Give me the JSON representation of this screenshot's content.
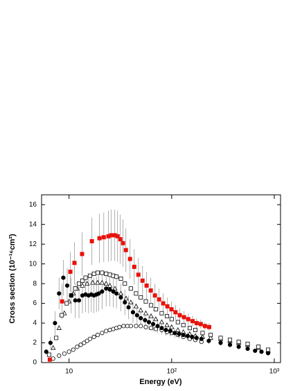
{
  "chart_data": {
    "type": "scatter",
    "xlabel": "Energy (eV)",
    "ylabel": "Cross section (10⁻¹⁶cm²)",
    "xscale": "log",
    "xlim": [
      5.4,
      1150
    ],
    "ylim": [
      0,
      17
    ],
    "xticks": [
      10,
      {
        "value": 100,
        "label": "10²"
      },
      {
        "value": 1000,
        "label": "10³"
      }
    ],
    "yticks": [
      0,
      2,
      4,
      6,
      8,
      10,
      12,
      14,
      16
    ],
    "errorbar_color": "#9a9a9a",
    "series": [
      {
        "color": "#e8120c",
        "marker": "square",
        "filled": true,
        "x": [
          6.5,
          8.56,
          10.3,
          11.3,
          13.4,
          16.7,
          19.8,
          21.8,
          24.2,
          25.8,
          27.9,
          29.7,
          31.6,
          33.6,
          35.8,
          39.3,
          43.2,
          47.4,
          52,
          57,
          62.6,
          68.7,
          75.4,
          82.7,
          90.8,
          99.6,
          109,
          120,
          132,
          145,
          160,
          175,
          192,
          211,
          232
        ],
        "values": [
          0.3,
          6.2,
          9.2,
          10.1,
          11.0,
          12.3,
          12.6,
          12.7,
          12.8,
          12.9,
          12.9,
          12.8,
          12.5,
          12.1,
          11.4,
          10.5,
          9.7,
          8.9,
          8.3,
          7.8,
          7.3,
          6.8,
          6.4,
          6.0,
          5.7,
          5.4,
          5.1,
          4.8,
          4.6,
          4.4,
          4.2,
          4.0,
          3.9,
          3.7,
          3.6
        ],
        "errors": [
          0.1,
          1.8,
          2.0,
          2.1,
          2.2,
          2.4,
          2.5,
          2.5,
          2.6,
          2.6,
          2.6,
          2.6,
          2.5,
          2.4,
          2.2,
          2.0,
          1.8,
          1.7,
          1.5,
          1.4,
          1.3,
          1.2,
          1.1,
          1.0,
          0.9,
          0.8,
          0.75,
          0.7,
          0.65,
          0.6,
          0.55,
          0.5,
          0.45,
          0.4,
          0.4
        ]
      },
      {
        "color": "#000000",
        "marker": "circle",
        "filled": true,
        "x": [
          6.0,
          6.6,
          7.3,
          8.0,
          8.8,
          9.6,
          10.5,
          11.5,
          12.5,
          13.5,
          14.5,
          15.5,
          16.5,
          17.5,
          18.5,
          19.5,
          21,
          23,
          25,
          27,
          29,
          32,
          35,
          38,
          42,
          46,
          50,
          55,
          60,
          66,
          73,
          80,
          88,
          97,
          107,
          118,
          130,
          143,
          158,
          175,
          195,
          230,
          300,
          370,
          450,
          550,
          650,
          750,
          870
        ],
        "values": [
          1.1,
          2.0,
          4.0,
          7.0,
          8.6,
          7.8,
          6.8,
          6.3,
          6.3,
          6.8,
          6.9,
          6.8,
          6.9,
          6.8,
          6.9,
          7.0,
          7.2,
          7.5,
          7.4,
          7.2,
          7.0,
          6.6,
          6.1,
          5.6,
          5.1,
          4.8,
          4.5,
          4.3,
          4.1,
          3.9,
          3.7,
          3.5,
          3.3,
          3.2,
          3.0,
          2.9,
          2.8,
          2.7,
          2.6,
          2.5,
          2.4,
          2.2,
          2.0,
          1.8,
          1.6,
          1.4,
          1.2,
          1.1,
          0.95
        ],
        "errors": [
          0.3,
          0.6,
          1.2,
          1.6,
          1.8,
          1.8,
          1.8,
          1.8,
          1.8,
          1.8,
          1.8,
          1.8,
          1.8,
          1.8,
          1.8,
          1.8,
          1.8,
          1.8,
          1.7,
          1.6,
          1.5,
          1.4,
          1.3,
          1.2,
          1.1,
          1.0,
          0.9,
          0.85,
          0.8,
          0.75,
          0.7,
          0.65,
          0.6,
          0.55,
          0.5,
          0.45,
          0.4,
          0.4,
          0.35,
          0.35,
          0.3,
          0.3,
          0.3,
          0.25,
          0.25,
          0.2,
          0.2,
          0.2,
          0.2
        ]
      },
      {
        "color": "#000000",
        "marker": "square",
        "filled": false,
        "x": [
          6.4,
          7.5,
          8.5,
          9.5,
          10.5,
          11.5,
          12.5,
          13.5,
          14.5,
          16,
          17.5,
          19,
          21,
          23,
          25,
          27,
          29,
          32,
          35,
          40,
          45,
          50,
          56,
          63,
          70,
          80,
          90,
          100,
          115,
          130,
          150,
          170,
          200,
          240,
          300,
          370,
          450,
          550,
          700,
          870
        ],
        "values": [
          0.8,
          2.5,
          4.8,
          6.0,
          6.8,
          7.5,
          8.0,
          8.3,
          8.6,
          8.8,
          9.0,
          9.1,
          9.1,
          9.0,
          8.9,
          8.8,
          8.7,
          8.5,
          8.0,
          7.5,
          7.0,
          6.6,
          6.2,
          5.8,
          5.4,
          5.0,
          4.7,
          4.4,
          4.1,
          3.8,
          3.5,
          3.3,
          3.0,
          2.8,
          2.5,
          2.3,
          2.1,
          1.9,
          1.6,
          1.3
        ]
      },
      {
        "color": "#000000",
        "marker": "triangle",
        "filled": false,
        "x": [
          7,
          8,
          9,
          10,
          11,
          12,
          13.5,
          15,
          17,
          19,
          21,
          23,
          25,
          28,
          32,
          36,
          40,
          45,
          50,
          56,
          63,
          70,
          80,
          90,
          100,
          115,
          130,
          150,
          170,
          200,
          240,
          300,
          370,
          450,
          550,
          700,
          870
        ],
        "values": [
          1.5,
          3.5,
          5.0,
          6.2,
          7.0,
          7.5,
          7.8,
          8.0,
          8.1,
          8.1,
          8.1,
          8.0,
          7.8,
          7.5,
          7.0,
          6.5,
          6.1,
          5.7,
          5.3,
          5.0,
          4.7,
          4.4,
          4.1,
          3.8,
          3.6,
          3.3,
          3.1,
          2.9,
          2.7,
          2.6,
          2.5,
          2.4,
          2.2,
          2.0,
          1.8,
          1.5,
          1.2
        ]
      },
      {
        "color": "#000000",
        "marker": "circle",
        "filled": false,
        "x": [
          7,
          8,
          9,
          10,
          11,
          12,
          13,
          14,
          15,
          16,
          17.5,
          19,
          21,
          23,
          25,
          27,
          29,
          31,
          34,
          37,
          40,
          45,
          50,
          56,
          63,
          70,
          80,
          90,
          100,
          115,
          130,
          150,
          170,
          195
        ],
        "values": [
          0.4,
          0.7,
          0.9,
          1.1,
          1.3,
          1.6,
          1.8,
          2.0,
          2.2,
          2.4,
          2.6,
          2.8,
          3.0,
          3.2,
          3.3,
          3.4,
          3.5,
          3.6,
          3.7,
          3.7,
          3.7,
          3.7,
          3.7,
          3.6,
          3.5,
          3.4,
          3.3,
          3.1,
          3.0,
          2.8,
          2.6,
          2.4,
          2.3,
          2.1
        ]
      }
    ]
  }
}
